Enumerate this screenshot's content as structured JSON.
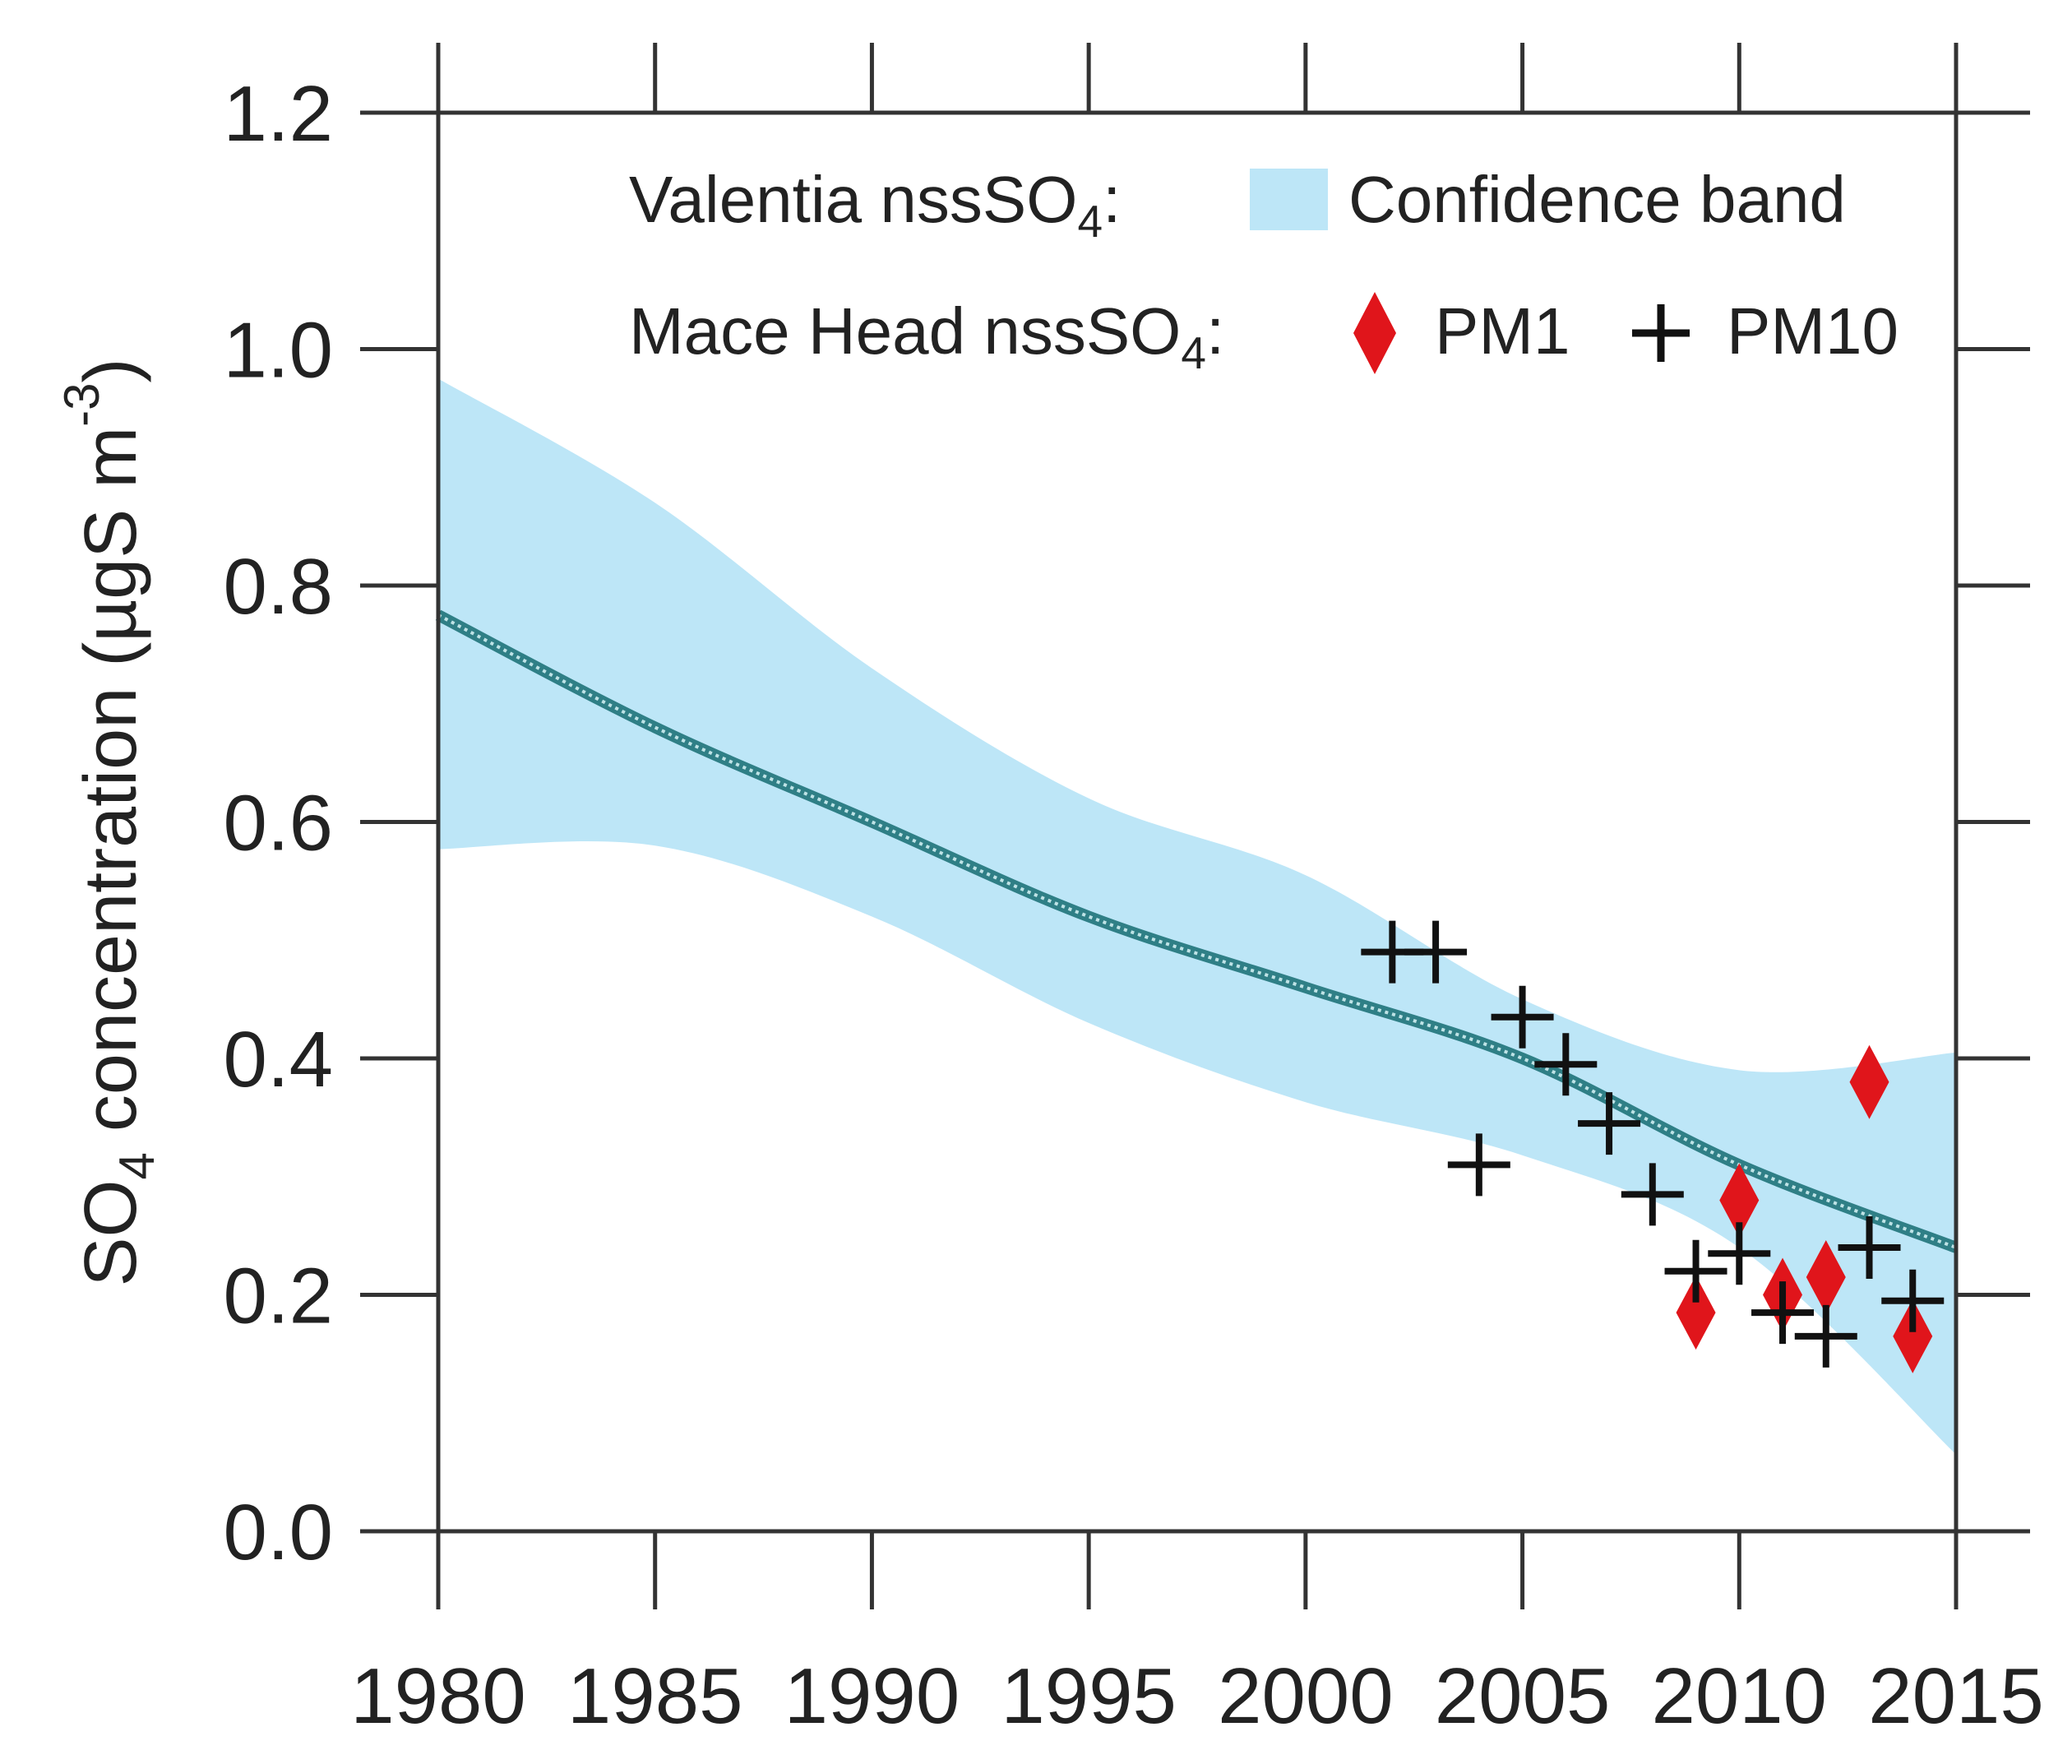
{
  "chart_data": {
    "type": "line",
    "title": "",
    "xlabel": "",
    "ylabel": {
      "main": "SO",
      "sub": "4",
      "rest": " concentration (µgS m",
      "sup": "-3",
      "close": ")"
    },
    "xlim": [
      1980,
      2015
    ],
    "ylim": [
      0.0,
      1.2
    ],
    "x_ticks": [
      1980,
      1985,
      1990,
      1995,
      2000,
      2005,
      2010,
      2015
    ],
    "y_ticks": [
      "0.0",
      "0.2",
      "0.4",
      "0.6",
      "0.8",
      "1.0",
      "1.2"
    ],
    "grid": false,
    "legend": {
      "placement": "top-right",
      "row1_label": "Valentia nssSO",
      "row1_sub": "4",
      "row1_colon": ":",
      "band_label": "Confidence band",
      "row2_label": "Mace Head  nssSO",
      "row2_sub": "4",
      "row2_colon": ":",
      "pm1_label": "PM1",
      "pm10_label": "PM10"
    },
    "trend": {
      "name": "Valentia nssSO4 trend",
      "x": [
        1980,
        1985,
        1990,
        1995,
        2000,
        2005,
        2010,
        2015
      ],
      "y": [
        0.775,
        0.68,
        0.6,
        0.52,
        0.46,
        0.4,
        0.31,
        0.24
      ],
      "color": "#2f7f86"
    },
    "band": {
      "name": "Confidence band",
      "x": [
        1980,
        1985,
        1990,
        1995,
        2000,
        2005,
        2010,
        2015
      ],
      "upper": [
        0.975,
        0.87,
        0.73,
        0.62,
        0.555,
        0.45,
        0.39,
        0.405
      ],
      "lower": [
        0.577,
        0.58,
        0.52,
        0.43,
        0.363,
        0.318,
        0.24,
        0.065
      ],
      "color": "#bde6f7"
    },
    "series": [
      {
        "name": "PM1",
        "marker": "diamond",
        "color": "#e0151b",
        "x": [
          2009,
          2010,
          2011,
          2012,
          2013,
          2014
        ],
        "y": [
          0.185,
          0.28,
          0.2,
          0.215,
          0.38,
          0.165
        ]
      },
      {
        "name": "PM10",
        "marker": "plus",
        "color": "#111111",
        "x": [
          2002,
          2003,
          2004,
          2005,
          2006,
          2007,
          2008,
          2009,
          2010,
          2011,
          2012,
          2013,
          2014
        ],
        "y": [
          0.49,
          0.49,
          0.31,
          0.435,
          0.395,
          0.345,
          0.285,
          0.22,
          0.235,
          0.185,
          0.165,
          0.24,
          0.195
        ]
      }
    ]
  }
}
